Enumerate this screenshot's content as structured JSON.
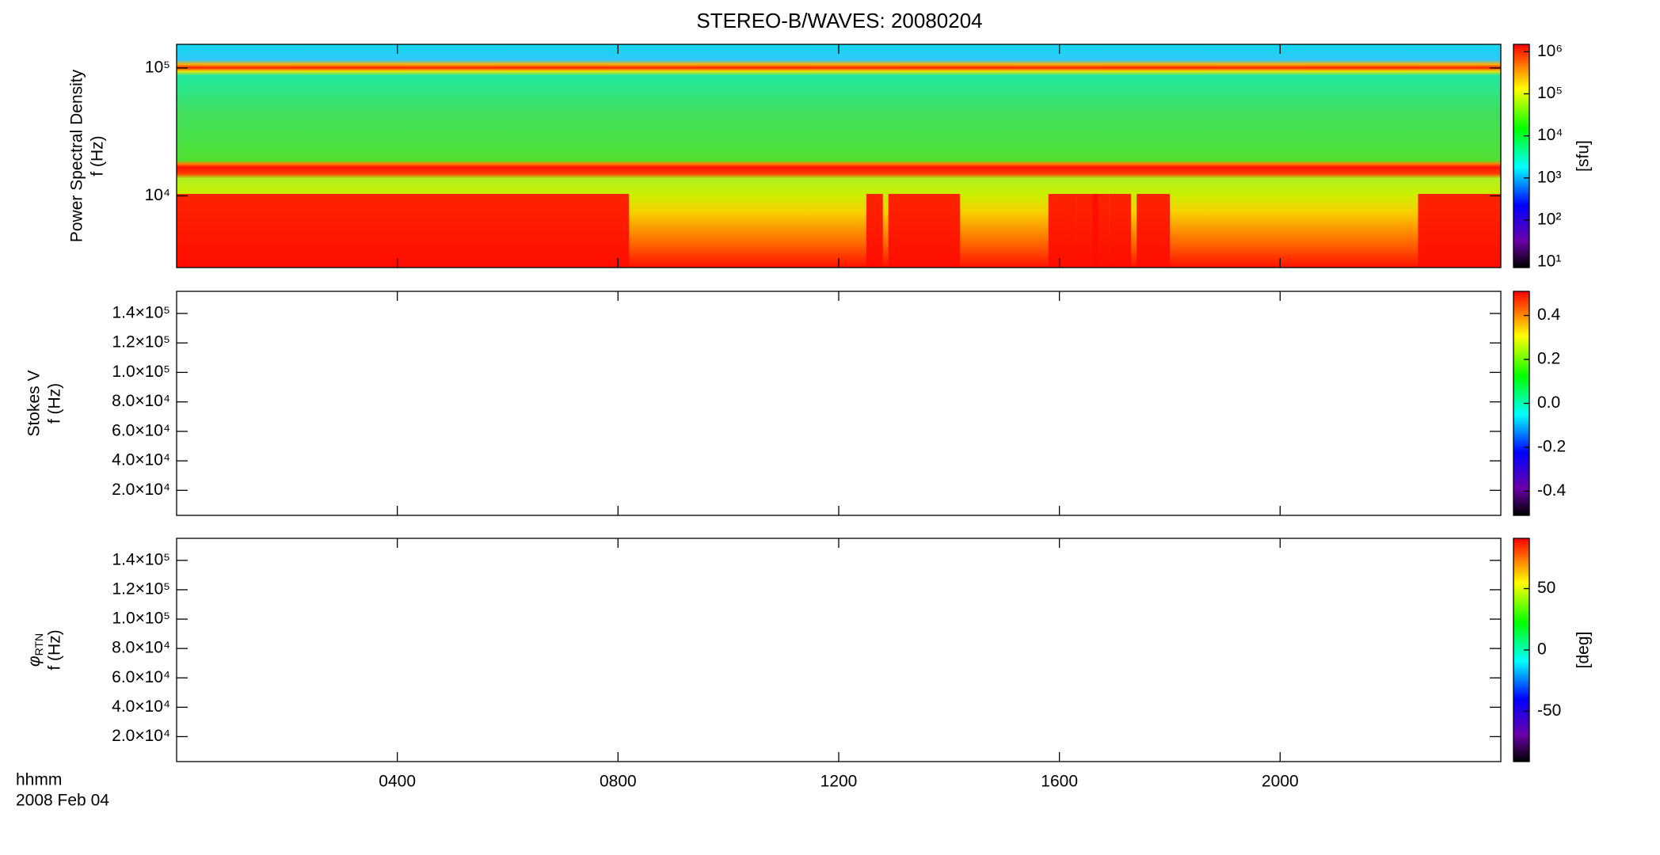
{
  "title": "STEREO-B/WAVES: 20080204",
  "x_axis": {
    "label": "hhmm",
    "date": "2008 Feb 04",
    "xlim": [
      0,
      24
    ],
    "xticks": [
      {
        "value": 4,
        "label": "0400"
      },
      {
        "value": 8,
        "label": "0800"
      },
      {
        "value": 12,
        "label": "1200"
      },
      {
        "value": 16,
        "label": "1600"
      },
      {
        "value": 20,
        "label": "2000"
      }
    ]
  },
  "chart_data": [
    {
      "type": "spectrogram",
      "ylabel": "Power Spectral Density",
      "ylabel_unit": "f (Hz)",
      "ylog": true,
      "ylim": [
        2750,
        153000
      ],
      "yticks": [
        {
          "value": 10000,
          "label": "10⁴"
        },
        {
          "value": 100000,
          "label": "10⁵"
        }
      ],
      "colorbar": {
        "log": true,
        "zlim": [
          7.4,
          1500000
        ],
        "label": "[sfu]",
        "ticks": [
          {
            "value": 10,
            "label": "10¹"
          },
          {
            "value": 100,
            "label": "10²"
          },
          {
            "value": 1000,
            "label": "10³"
          },
          {
            "value": 10000,
            "label": "10⁴"
          },
          {
            "value": 100000,
            "label": "10⁵"
          },
          {
            "value": 1000000,
            "label": "10⁶"
          }
        ]
      }
    },
    {
      "type": "spectrogram",
      "ylabel": "Stokes V",
      "ylabel_unit": "f (Hz)",
      "ylog": false,
      "ylim": [
        3000,
        155000
      ],
      "yticks": [
        {
          "value": 20000,
          "label": "2.0×10⁴"
        },
        {
          "value": 40000,
          "label": "4.0×10⁴"
        },
        {
          "value": 60000,
          "label": "6.0×10⁴"
        },
        {
          "value": 80000,
          "label": "8.0×10⁴"
        },
        {
          "value": 100000,
          "label": "1.0×10⁵"
        },
        {
          "value": 120000,
          "label": "1.2×10⁵"
        },
        {
          "value": 140000,
          "label": "1.4×10⁵"
        }
      ],
      "colorbar": {
        "log": false,
        "zlim": [
          -0.51,
          0.51
        ],
        "ticks": [
          -0.4,
          -0.2,
          {
            "value": 0,
            "label": "0.0"
          },
          0.2,
          0.4
        ]
      }
    },
    {
      "type": "spectrogram",
      "ylabel": "φ",
      "ylabel_subscript": "RTN",
      "ylabel_unit": "f (Hz)",
      "ylog": false,
      "ylim": [
        3000,
        155000
      ],
      "yticks": [
        {
          "value": 20000,
          "label": "2.0×10⁴"
        },
        {
          "value": 40000,
          "label": "4.0×10⁴"
        },
        {
          "value": 60000,
          "label": "6.0×10⁴"
        },
        {
          "value": 80000,
          "label": "8.0×10⁴"
        },
        {
          "value": 100000,
          "label": "1.0×10⁵"
        },
        {
          "value": 120000,
          "label": "1.2×10⁵"
        },
        {
          "value": 140000,
          "label": "1.4×10⁵"
        }
      ],
      "colorbar": {
        "log": false,
        "zlim": [
          -91,
          91
        ],
        "label": "[deg]",
        "ticks": [
          -50,
          0,
          50
        ]
      }
    }
  ]
}
